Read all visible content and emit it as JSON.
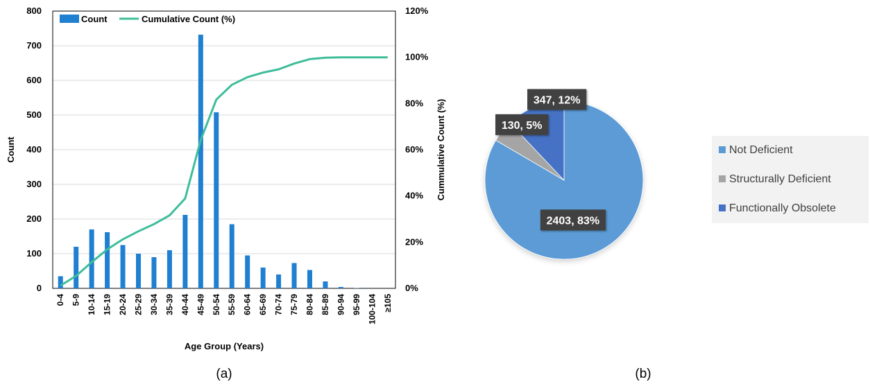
{
  "chart_data": [
    {
      "type": "bar",
      "panel_label": "(a)",
      "categories": [
        "0-4",
        "5-9",
        "10-14",
        "15-19",
        "20-24",
        "25-29",
        "30-34",
        "35-39",
        "40-44",
        "45-49",
        "50-54",
        "55-59",
        "60-64",
        "65-69",
        "70-74",
        "75-79",
        "80-84",
        "85-89",
        "90-94",
        "95-99",
        "100-104",
        "≥105"
      ],
      "series": [
        {
          "name": "Count",
          "kind": "bar",
          "axis": "left",
          "color": "#1f7fd1",
          "values": [
            35,
            120,
            170,
            162,
            125,
            100,
            90,
            110,
            212,
            732,
            508,
            185,
            95,
            60,
            40,
            73,
            53,
            20,
            4,
            1,
            0,
            0
          ]
        },
        {
          "name": "Cumulative Count (%)",
          "kind": "line",
          "axis": "right",
          "color": "#3dbd9a",
          "values": [
            1.2,
            5.4,
            11.3,
            16.9,
            21.2,
            24.7,
            27.8,
            31.6,
            38.9,
            64.2,
            81.7,
            88.1,
            91.4,
            93.4,
            94.8,
            97.3,
            99.2,
            99.8,
            99.97,
            100,
            100,
            100
          ]
        }
      ],
      "xlabel": "Age Group (Years)",
      "ylabel": "Count",
      "y2label": "Cummulative Count (%)",
      "ylim": [
        0,
        800
      ],
      "y2lim": [
        0,
        120
      ],
      "yticks": [
        "0",
        "100",
        "200",
        "300",
        "400",
        "500",
        "600",
        "700",
        "800"
      ],
      "y2ticks": [
        "0%",
        "20%",
        "40%",
        "60%",
        "80%",
        "100%",
        "120%"
      ],
      "legend_placement": "top-left",
      "grid": true
    },
    {
      "type": "pie",
      "panel_label": "(b)",
      "labels": [
        "Not Deficient",
        "Structurally Deficient",
        "Functionally Obsolete"
      ],
      "values": [
        2403,
        130,
        347
      ],
      "percent": [
        83,
        5,
        12
      ],
      "data_labels": [
        "2403, 83%",
        "130, 5%",
        "347, 12%"
      ],
      "colors": [
        "#5b9bd5",
        "#a5a5a5",
        "#4472c4"
      ],
      "legend_placement": "right"
    }
  ]
}
